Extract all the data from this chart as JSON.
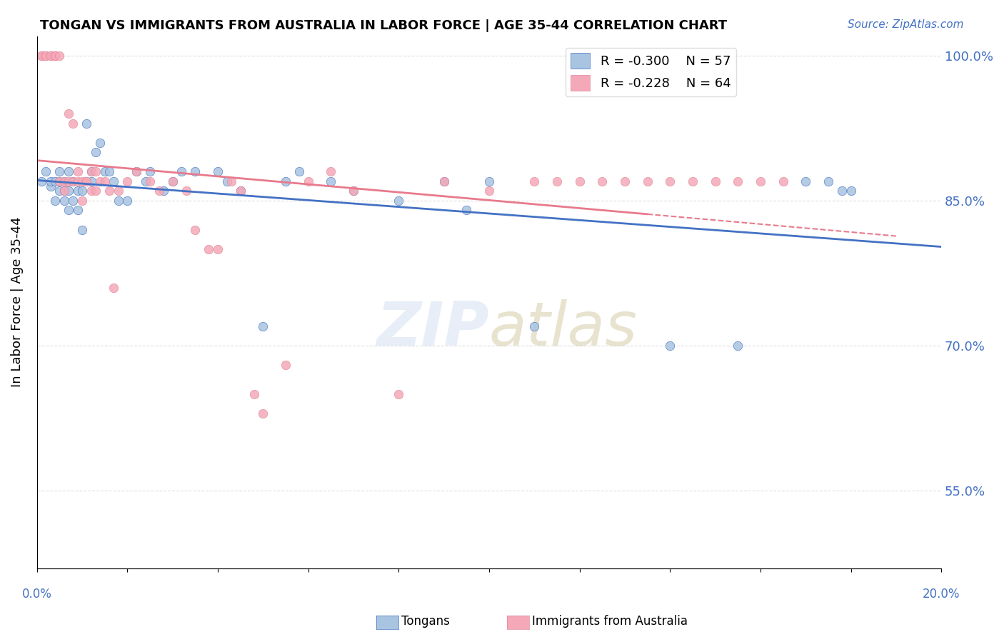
{
  "title": "TONGAN VS IMMIGRANTS FROM AUSTRALIA IN LABOR FORCE | AGE 35-44 CORRELATION CHART",
  "source": "Source: ZipAtlas.com",
  "ylabel": "In Labor Force | Age 35-44",
  "legend_label_blue": "Tongans",
  "legend_label_pink": "Immigrants from Australia",
  "R_blue": -0.3,
  "N_blue": 57,
  "R_pink": -0.228,
  "N_pink": 64,
  "xmin": 0.0,
  "xmax": 0.2,
  "ymin": 0.47,
  "ymax": 1.02,
  "yticks": [
    0.55,
    0.7,
    0.85,
    1.0
  ],
  "ytick_labels": [
    "55.0%",
    "70.0%",
    "85.0%",
    "100.0%"
  ],
  "color_blue": "#a8c4e0",
  "color_pink": "#f4a8b8",
  "trend_blue": "#4472c4",
  "trend_pink": "#e87a8c",
  "blue_x": [
    0.001,
    0.002,
    0.003,
    0.003,
    0.004,
    0.004,
    0.005,
    0.005,
    0.005,
    0.006,
    0.006,
    0.006,
    0.007,
    0.007,
    0.007,
    0.008,
    0.008,
    0.009,
    0.009,
    0.01,
    0.01,
    0.011,
    0.012,
    0.012,
    0.013,
    0.014,
    0.015,
    0.016,
    0.017,
    0.018,
    0.02,
    0.022,
    0.024,
    0.025,
    0.028,
    0.03,
    0.032,
    0.035,
    0.04,
    0.042,
    0.045,
    0.05,
    0.055,
    0.058,
    0.065,
    0.07,
    0.08,
    0.09,
    0.095,
    0.1,
    0.11,
    0.14,
    0.155,
    0.17,
    0.175,
    0.178,
    0.18
  ],
  "blue_y": [
    0.87,
    0.88,
    0.865,
    0.87,
    0.87,
    0.85,
    0.88,
    0.86,
    0.87,
    0.85,
    0.86,
    0.87,
    0.88,
    0.86,
    0.84,
    0.87,
    0.85,
    0.86,
    0.84,
    0.82,
    0.86,
    0.93,
    0.88,
    0.87,
    0.9,
    0.91,
    0.88,
    0.88,
    0.87,
    0.85,
    0.85,
    0.88,
    0.87,
    0.88,
    0.86,
    0.87,
    0.88,
    0.88,
    0.88,
    0.87,
    0.86,
    0.72,
    0.87,
    0.88,
    0.87,
    0.86,
    0.85,
    0.87,
    0.84,
    0.87,
    0.72,
    0.7,
    0.7,
    0.87,
    0.87,
    0.86,
    0.86
  ],
  "pink_x": [
    0.001,
    0.001,
    0.002,
    0.002,
    0.003,
    0.003,
    0.004,
    0.004,
    0.004,
    0.005,
    0.005,
    0.006,
    0.006,
    0.007,
    0.007,
    0.008,
    0.008,
    0.009,
    0.009,
    0.01,
    0.01,
    0.011,
    0.011,
    0.012,
    0.012,
    0.013,
    0.013,
    0.014,
    0.015,
    0.016,
    0.017,
    0.018,
    0.02,
    0.022,
    0.025,
    0.027,
    0.03,
    0.033,
    0.035,
    0.038,
    0.04,
    0.043,
    0.045,
    0.048,
    0.05,
    0.055,
    0.06,
    0.065,
    0.07,
    0.08,
    0.09,
    0.1,
    0.11,
    0.115,
    0.12,
    0.125,
    0.13,
    0.135,
    0.14,
    0.145,
    0.15,
    0.155,
    0.16,
    0.165
  ],
  "pink_y": [
    1.0,
    1.0,
    1.0,
    1.0,
    1.0,
    1.0,
    1.0,
    1.0,
    1.0,
    1.0,
    0.87,
    0.87,
    0.86,
    0.94,
    0.87,
    0.93,
    0.87,
    0.88,
    0.87,
    0.85,
    0.87,
    0.87,
    0.87,
    0.86,
    0.88,
    0.88,
    0.86,
    0.87,
    0.87,
    0.86,
    0.76,
    0.86,
    0.87,
    0.88,
    0.87,
    0.86,
    0.87,
    0.86,
    0.82,
    0.8,
    0.8,
    0.87,
    0.86,
    0.65,
    0.63,
    0.68,
    0.87,
    0.88,
    0.86,
    0.65,
    0.87,
    0.86,
    0.87,
    0.87,
    0.87,
    0.87,
    0.87,
    0.87,
    0.87,
    0.87,
    0.87,
    0.87,
    0.87,
    0.87
  ]
}
